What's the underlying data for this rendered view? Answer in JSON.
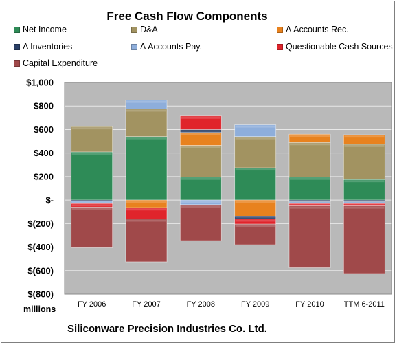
{
  "chart_data": {
    "type": "bar",
    "stacked": true,
    "title": "Free Cash Flow Components",
    "units_label": "millions",
    "footer": "Siliconware Precision Industries Co. Ltd.",
    "categories": [
      "FY 2006",
      "FY 2007",
      "FY 2008",
      "FY 2009",
      "FY 2010",
      "TTM 6-2011"
    ],
    "ylim": [
      -800,
      1000
    ],
    "yticks": [
      1000,
      800,
      600,
      400,
      200,
      0,
      -200,
      -400,
      -600,
      -800
    ],
    "ytick_labels": [
      "$1,000",
      "$800",
      "$600",
      "$400",
      "$200",
      "$-",
      "$(200)",
      "$(400)",
      "$(600)",
      "$(800)"
    ],
    "legend_position": "top",
    "grid": true,
    "series": [
      {
        "name": "Net Income",
        "color": "#2e8b57",
        "values": [
          410,
          540,
          195,
          275,
          195,
          175
        ]
      },
      {
        "name": "D&A",
        "color": "#a29361",
        "values": [
          215,
          235,
          270,
          265,
          295,
          300
        ]
      },
      {
        "name": "Δ Accounts Rec.",
        "color": "#e8821e",
        "values": [
          0,
          -65,
          110,
          -140,
          70,
          80
        ]
      },
      {
        "name": "Δ Inventories",
        "color": "#2a3f66",
        "values": [
          -10,
          0,
          25,
          -20,
          -15,
          -15
        ]
      },
      {
        "name": "Δ Accounts Pay.",
        "color": "#8eaedb",
        "values": [
          -20,
          75,
          -40,
          100,
          -15,
          -15
        ]
      },
      {
        "name": "Questionable Cash Sources",
        "color": "#e0242b",
        "values": [
          -30,
          -95,
          115,
          -45,
          -20,
          -20
        ]
      },
      {
        "name": "Capital Expenditure",
        "color": "#a0494a",
        "values": [
          -345,
          -365,
          -305,
          -175,
          -525,
          -575
        ]
      }
    ]
  }
}
